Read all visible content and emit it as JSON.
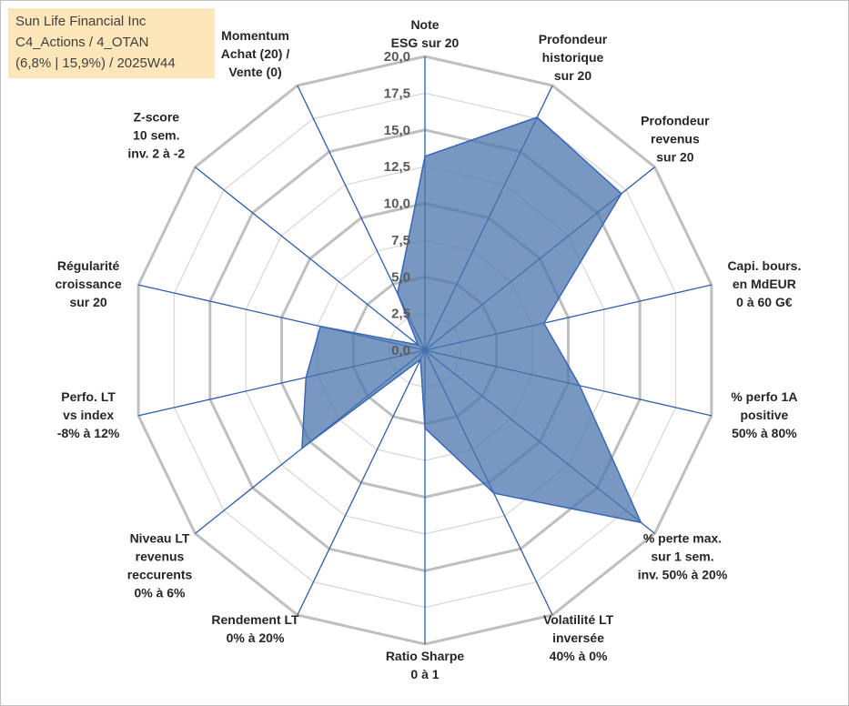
{
  "title": {
    "line1": "Sun Life Financial Inc",
    "line2": "C4_Actions / 4_OTAN",
    "line3": "(6,8% | 15,9%) / 2025W44"
  },
  "chart_data": {
    "type": "radar",
    "series_name": "Sun Life Financial Inc",
    "r_min": 0,
    "r_max": 20,
    "r_step": 2.5,
    "tick_labels": [
      "0,0",
      "2,5",
      "5,0",
      "7,5",
      "10,0",
      "12,5",
      "15,0",
      "17,5",
      "20,0"
    ],
    "categories": [
      [
        "Note",
        "ESG sur 20"
      ],
      [
        "Profondeur",
        "historique",
        "sur 20"
      ],
      [
        "Profondeur",
        "revenus",
        "sur 20"
      ],
      [
        "Capi. bours.",
        "en MdEUR",
        "0 à 60 G€"
      ],
      [
        "% perfo 1A",
        "positive",
        "50% à 80%"
      ],
      [
        "% perte max.",
        "sur 1 sem.",
        "inv. 50% à 20%"
      ],
      [
        "Volatilité LT",
        "inversée",
        "40% à 0%"
      ],
      [
        "Ratio Sharpe",
        "0 à 1"
      ],
      [
        "Rendement LT",
        "0% à 20%"
      ],
      [
        "Niveau LT",
        "revenus",
        "reccurents",
        "0% à 6%"
      ],
      [
        "Perfo. LT",
        "vs index",
        "-8% à 12%"
      ],
      [
        "Régularité",
        "croissance",
        "sur 20"
      ],
      [
        "Z-score",
        "10 sem.",
        "inv. 2 à -2"
      ],
      [
        "Momentum",
        "Achat (20) /",
        "Vente (0)"
      ]
    ],
    "values": [
      13.2,
      17.6,
      17.1,
      8.3,
      10.8,
      18.8,
      10.8,
      5.3,
      0.7,
      10.7,
      8.3,
      7.3,
      0.6,
      4.3
    ],
    "colors": {
      "fill": "#4b75ac",
      "stroke": "#3a66b8",
      "spokes": "#2e5dab",
      "grid_major": "#bfbfbf",
      "grid_minor": "#d9d9d9"
    }
  }
}
